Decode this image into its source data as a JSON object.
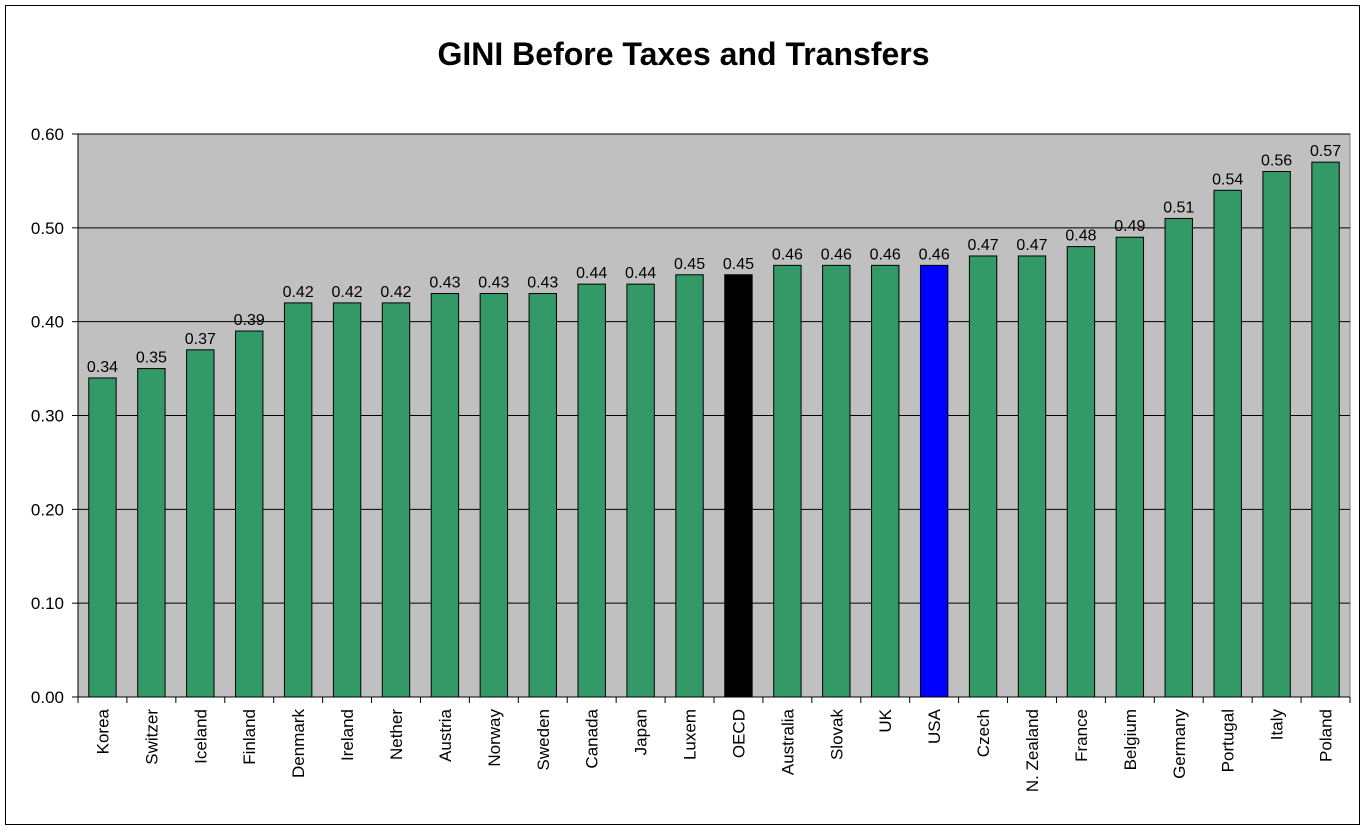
{
  "chart_data": {
    "type": "bar",
    "title": "GINI Before Taxes and Transfers",
    "xlabel": "",
    "ylabel": "",
    "ylim": [
      0,
      0.6
    ],
    "yticks": [
      "0.00",
      "0.10",
      "0.20",
      "0.30",
      "0.40",
      "0.50",
      "0.60"
    ],
    "grid": true,
    "legend": "none",
    "categories": [
      "Korea",
      "Switzer",
      "Iceland",
      "Finland",
      "Denmark",
      "Ireland",
      "Nether",
      "Austria",
      "Norway",
      "Sweden",
      "Canada",
      "Japan",
      "Luxem",
      "OECD",
      "Australia",
      "Slovak",
      "UK",
      "USA",
      "Czech",
      "N. Zealand",
      "France",
      "Belgium",
      "Germany",
      "Portugal",
      "Italy",
      "Poland"
    ],
    "values": [
      0.34,
      0.35,
      0.37,
      0.39,
      0.42,
      0.42,
      0.42,
      0.43,
      0.43,
      0.43,
      0.44,
      0.44,
      0.45,
      0.45,
      0.46,
      0.46,
      0.46,
      0.46,
      0.47,
      0.47,
      0.48,
      0.49,
      0.51,
      0.54,
      0.56,
      0.57
    ],
    "data_labels": [
      "0.34",
      "0.35",
      "0.37",
      "0.39",
      "0.42",
      "0.42",
      "0.42",
      "0.43",
      "0.43",
      "0.43",
      "0.44",
      "0.44",
      "0.45",
      "0.45",
      "0.46",
      "0.46",
      "0.46",
      "0.46",
      "0.47",
      "0.47",
      "0.48",
      "0.49",
      "0.51",
      "0.54",
      "0.56",
      "0.57"
    ],
    "colors": {
      "default_bar": "#339966",
      "highlight": {
        "OECD": "#000000",
        "USA": "#0000ff"
      },
      "plot_background": "#c0c0c0",
      "gridline": "#000000"
    }
  }
}
